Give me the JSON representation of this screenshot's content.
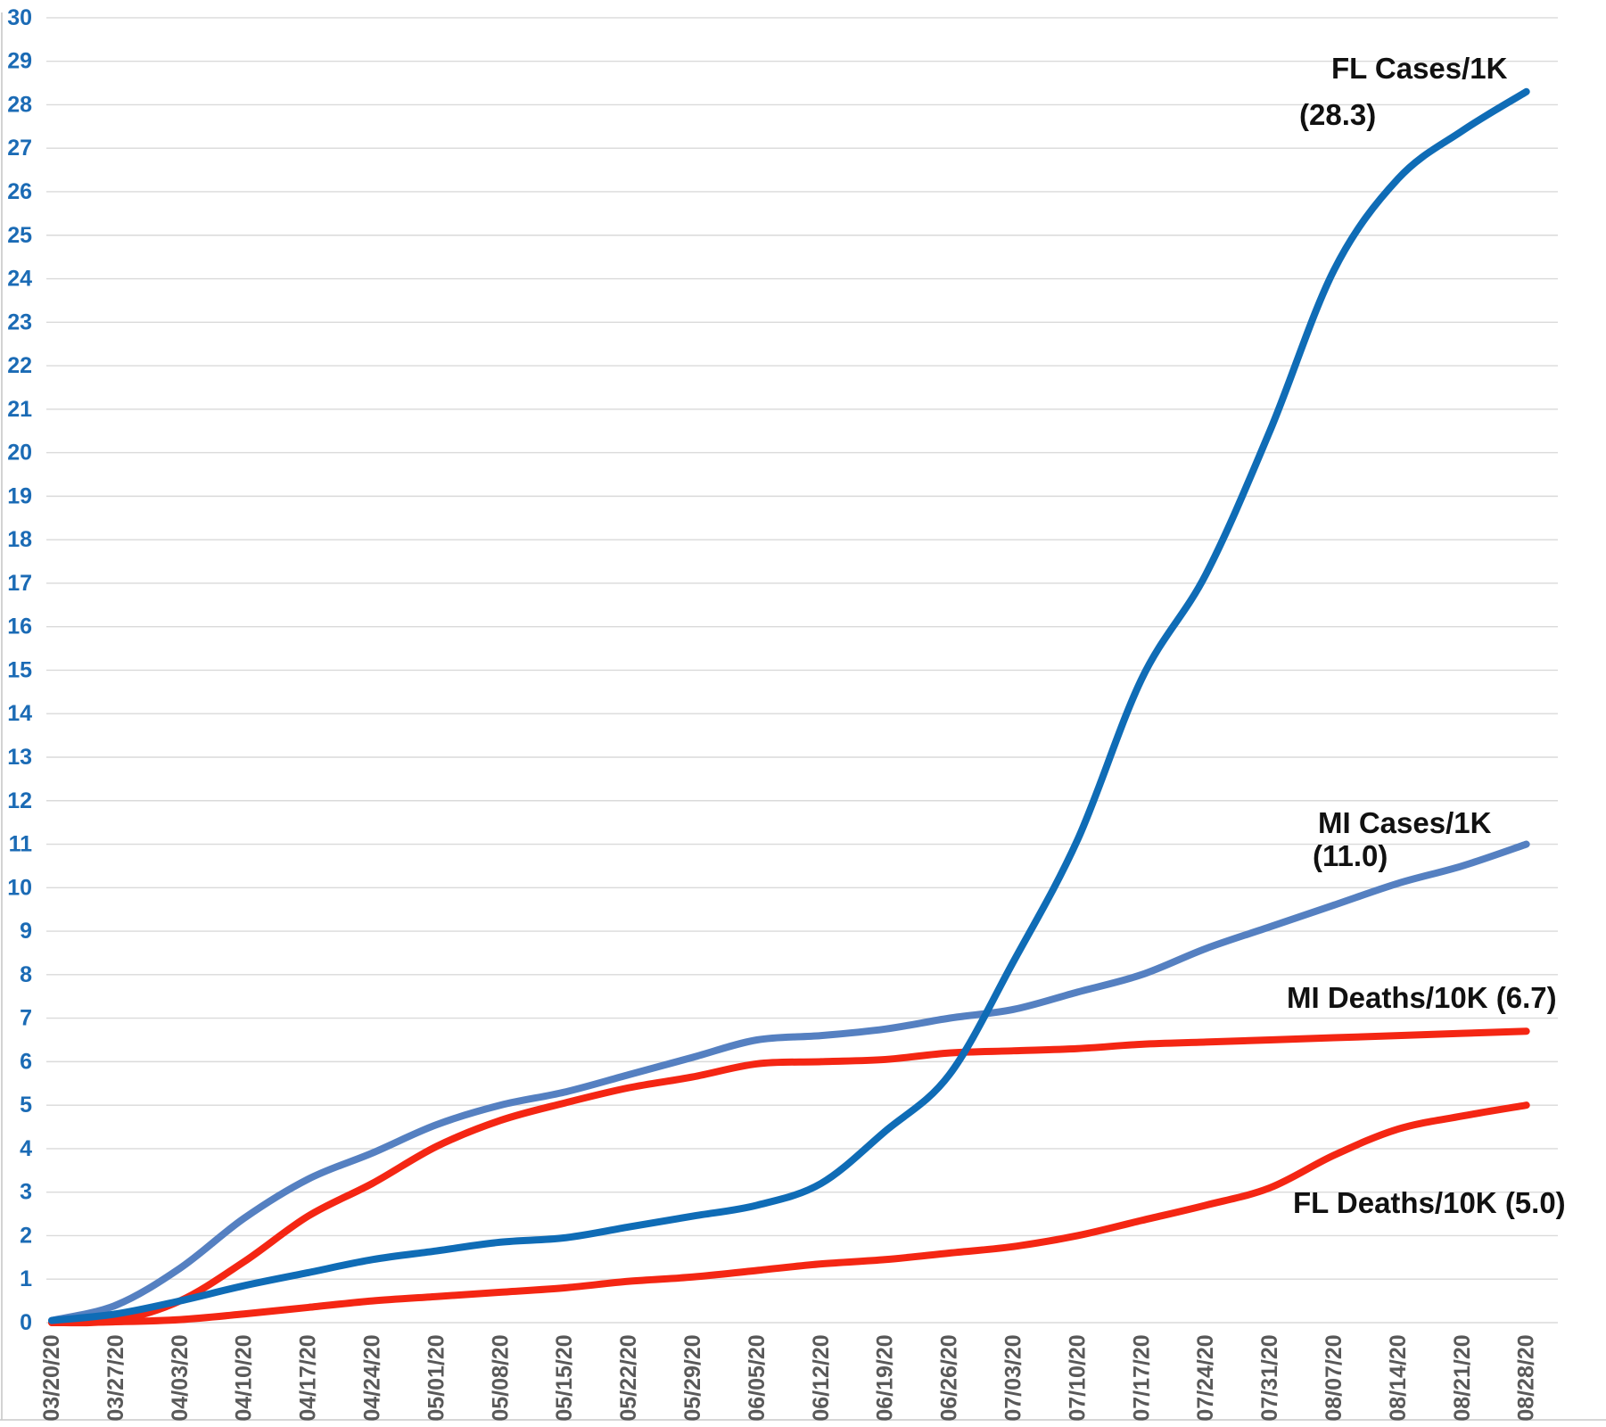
{
  "chart_data": {
    "type": "line",
    "title": "",
    "x_labels": [
      "03/20/20",
      "03/27/20",
      "04/03/20",
      "04/10/20",
      "04/17/20",
      "04/24/20",
      "05/01/20",
      "05/08/20",
      "05/15/20",
      "05/22/20",
      "05/29/20",
      "06/05/20",
      "06/12/20",
      "06/19/20",
      "06/26/20",
      "07/03/20",
      "07/10/20",
      "07/17/20",
      "07/24/20",
      "07/31/20",
      "08/07/20",
      "08/14/20",
      "08/21/20",
      "08/28/20"
    ],
    "ylim": [
      0,
      30
    ],
    "ytick_step": 1,
    "grid": true,
    "legend_position": "inline-annotations",
    "series": [
      {
        "id": "fl-cases",
        "label": "FL Cases/1K",
        "value_label": "(28.3)",
        "final_value": 28.3,
        "color": "#0F6CB6",
        "values": [
          0.05,
          0.2,
          0.5,
          0.85,
          1.15,
          1.45,
          1.65,
          1.85,
          1.95,
          2.2,
          2.45,
          2.7,
          3.2,
          4.4,
          5.7,
          8.3,
          11.1,
          14.8,
          17.2,
          20.5,
          24.2,
          26.3,
          27.4,
          28.3
        ]
      },
      {
        "id": "mi-cases",
        "label": "MI Cases/1K",
        "value_label": "(11.0)",
        "final_value": 11.0,
        "color": "#5580C1",
        "values": [
          0.05,
          0.4,
          1.25,
          2.4,
          3.3,
          3.9,
          4.55,
          5.0,
          5.3,
          5.7,
          6.1,
          6.5,
          6.6,
          6.75,
          7.0,
          7.2,
          7.6,
          8.0,
          8.6,
          9.1,
          9.6,
          10.1,
          10.5,
          11.0
        ]
      },
      {
        "id": "mi-deaths",
        "label": "MI Deaths/10K",
        "value_label": "(6.7)",
        "final_value": 6.7,
        "color": "#F42613",
        "values": [
          0.0,
          0.05,
          0.5,
          1.4,
          2.45,
          3.2,
          4.05,
          4.65,
          5.05,
          5.4,
          5.65,
          5.95,
          6.0,
          6.05,
          6.2,
          6.25,
          6.3,
          6.4,
          6.45,
          6.5,
          6.55,
          6.6,
          6.65,
          6.7
        ]
      },
      {
        "id": "fl-deaths",
        "label": "FL Deaths/10K",
        "value_label": "(5.0)",
        "final_value": 5.0,
        "color": "#F42613",
        "values": [
          0.0,
          0.02,
          0.07,
          0.2,
          0.35,
          0.5,
          0.6,
          0.7,
          0.8,
          0.95,
          1.05,
          1.2,
          1.35,
          1.45,
          1.6,
          1.75,
          2.0,
          2.35,
          2.7,
          3.1,
          3.85,
          4.45,
          4.75,
          5.0
        ]
      }
    ],
    "axis_style": {
      "y_label_color": "#1B6BB5",
      "x_label_color": "#595959",
      "gridline_color": "#DADADA",
      "border_color": "#C8C8C8"
    }
  }
}
